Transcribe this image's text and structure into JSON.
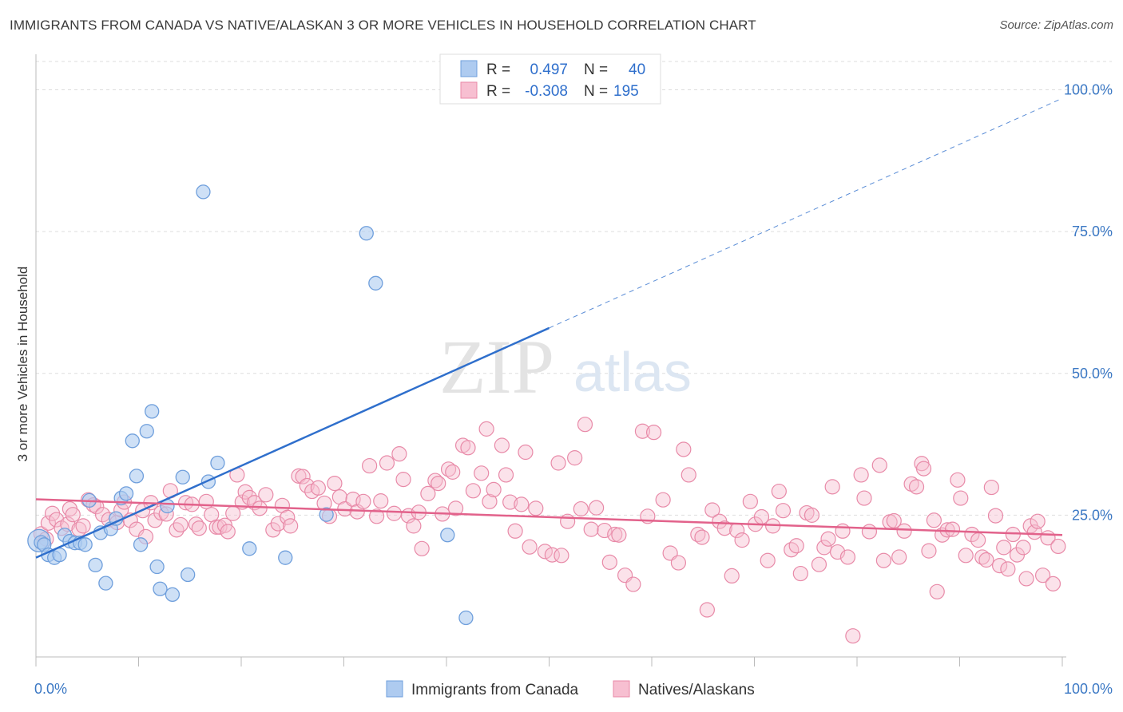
{
  "header": {
    "title": "IMMIGRANTS FROM CANADA VS NATIVE/ALASKAN 3 OR MORE VEHICLES IN HOUSEHOLD CORRELATION CHART",
    "source": "Source: ZipAtlas.com"
  },
  "watermark": {
    "zip": "ZIP",
    "atlas": "atlas"
  },
  "stats_legend": {
    "rows": [
      {
        "r_label": "R =",
        "r_value": "0.497",
        "n_label": "N =",
        "n_value": "40"
      },
      {
        "r_label": "R =",
        "r_value": "-0.308",
        "n_label": "N =",
        "n_value": "195"
      }
    ]
  },
  "colors": {
    "blue_fill": "#aecbf0",
    "blue_stroke": "#6f9fdc",
    "blue_line": "#2f6fcc",
    "pink_fill": "#f7bfd1",
    "pink_stroke": "#e88aa8",
    "pink_line": "#e2628b",
    "tick_text": "#3b78c4",
    "grid": "#dddddd"
  },
  "chart_data": {
    "type": "scatter",
    "title": "IMMIGRANTS FROM CANADA VS NATIVE/ALASKAN 3 OR MORE VEHICLES IN HOUSEHOLD CORRELATION CHART",
    "xlabel": "",
    "ylabel": "3 or more Vehicles in Household",
    "xlim": [
      0,
      100
    ],
    "ylim": [
      0,
      105
    ],
    "x_tick_labels": [
      "0.0%",
      "100.0%"
    ],
    "y_ticks": [
      25,
      50,
      75,
      100
    ],
    "y_tick_labels": [
      "25.0%",
      "50.0%",
      "75.0%",
      "100.0%"
    ],
    "grid": true,
    "legend_position": "bottom-center",
    "series": [
      {
        "name": "Immigrants from Canada",
        "color": "#aecbf0",
        "trend": {
          "x0": 0,
          "y0": 17.5,
          "x1": 50,
          "y1": 58,
          "x_dashed_end": 100,
          "y_dashed_end": 98.5
        },
        "points": [
          [
            0.3,
            20.5
          ],
          [
            0.5,
            20.2
          ],
          [
            0.8,
            19.8
          ],
          [
            1.2,
            18
          ],
          [
            1.8,
            17.5
          ],
          [
            2.3,
            18
          ],
          [
            2.8,
            21.5
          ],
          [
            3.3,
            20.4
          ],
          [
            3.8,
            20.1
          ],
          [
            4.3,
            20.1
          ],
          [
            4.8,
            19.8
          ],
          [
            5.2,
            27.6
          ],
          [
            5.8,
            16.2
          ],
          [
            6.3,
            21.9
          ],
          [
            6.8,
            13
          ],
          [
            7.3,
            22.6
          ],
          [
            7.8,
            24.4
          ],
          [
            8.3,
            28
          ],
          [
            8.8,
            28.8
          ],
          [
            9.4,
            38.1
          ],
          [
            9.8,
            31.9
          ],
          [
            10.2,
            19.8
          ],
          [
            10.8,
            39.8
          ],
          [
            11.3,
            43.3
          ],
          [
            11.8,
            15.9
          ],
          [
            12.1,
            12
          ],
          [
            12.8,
            26.6
          ],
          [
            13.3,
            11
          ],
          [
            14.3,
            31.7
          ],
          [
            14.8,
            14.5
          ],
          [
            16.3,
            82
          ],
          [
            16.8,
            30.9
          ],
          [
            17.7,
            34.2
          ],
          [
            20.8,
            19.1
          ],
          [
            24.3,
            17.5
          ],
          [
            28.3,
            25.1
          ],
          [
            32.2,
            74.7
          ],
          [
            33.1,
            65.9
          ],
          [
            40.1,
            21.5
          ],
          [
            41.9,
            6.9
          ]
        ]
      },
      {
        "name": "Natives/Alaskans",
        "color": "#f7bfd1",
        "trend": {
          "x0": 0,
          "y0": 27.8,
          "x1": 100,
          "y1": 21.5
        },
        "points": [
          [
            0.5,
            21.7
          ],
          [
            1,
            20.8
          ],
          [
            1.2,
            23.6
          ],
          [
            1.6,
            25.3
          ],
          [
            2,
            24.2
          ],
          [
            2.5,
            22.7
          ],
          [
            3.1,
            23.4
          ],
          [
            3.3,
            26.1
          ],
          [
            3.6,
            25.1
          ],
          [
            4.2,
            22.5
          ],
          [
            4.6,
            23.1
          ],
          [
            5.1,
            27.7
          ],
          [
            5.6,
            26.8
          ],
          [
            5.9,
            26.5
          ],
          [
            6.5,
            25.1
          ],
          [
            7.1,
            24.2
          ],
          [
            7.9,
            23.7
          ],
          [
            8.3,
            25.9
          ],
          [
            8.6,
            27.3
          ],
          [
            9.2,
            24.1
          ],
          [
            9.8,
            22.5
          ],
          [
            10.4,
            25.8
          ],
          [
            10.7,
            21.2
          ],
          [
            11.2,
            27.2
          ],
          [
            11.6,
            24.1
          ],
          [
            12.2,
            25.4
          ],
          [
            12.7,
            25.2
          ],
          [
            13.1,
            29.3
          ],
          [
            13.7,
            22.4
          ],
          [
            14.1,
            23.3
          ],
          [
            14.6,
            27.2
          ],
          [
            15.2,
            26.9
          ],
          [
            15.6,
            23.4
          ],
          [
            15.9,
            22.7
          ],
          [
            16.6,
            27.4
          ],
          [
            17.1,
            25.1
          ],
          [
            17.6,
            22.9
          ],
          [
            17.9,
            22.9
          ],
          [
            18.4,
            23.2
          ],
          [
            18.7,
            22.1
          ],
          [
            19.2,
            25.3
          ],
          [
            19.6,
            32.1
          ],
          [
            20.1,
            27.3
          ],
          [
            20.4,
            29.1
          ],
          [
            20.8,
            28.1
          ],
          [
            21.3,
            27.2
          ],
          [
            21.8,
            26.2
          ],
          [
            22.4,
            28.6
          ],
          [
            23.1,
            22.4
          ],
          [
            23.6,
            23.5
          ],
          [
            24,
            26.7
          ],
          [
            24.5,
            24.6
          ],
          [
            24.8,
            23.1
          ],
          [
            25.6,
            31.9
          ],
          [
            26,
            31.8
          ],
          [
            26.4,
            30.2
          ],
          [
            26.9,
            29.2
          ],
          [
            27.5,
            29.8
          ],
          [
            28.1,
            27.1
          ],
          [
            28.6,
            24.8
          ],
          [
            29.1,
            30.6
          ],
          [
            29.6,
            28.2
          ],
          [
            30.1,
            26.1
          ],
          [
            30.9,
            27.8
          ],
          [
            31.3,
            25.6
          ],
          [
            31.9,
            27.4
          ],
          [
            32.5,
            33.7
          ],
          [
            33.2,
            24.8
          ],
          [
            33.6,
            27.5
          ],
          [
            34.2,
            34.2
          ],
          [
            34.9,
            25.3
          ],
          [
            35.4,
            35.8
          ],
          [
            35.8,
            31.3
          ],
          [
            36.3,
            24.9
          ],
          [
            36.8,
            23.1
          ],
          [
            37.3,
            25.5
          ],
          [
            37.6,
            19.1
          ],
          [
            38.2,
            28.8
          ],
          [
            38.9,
            31.1
          ],
          [
            39.2,
            30.6
          ],
          [
            39.6,
            25.2
          ],
          [
            40.2,
            33.1
          ],
          [
            40.6,
            32.6
          ],
          [
            40.9,
            26.2
          ],
          [
            41.6,
            37.3
          ],
          [
            42.1,
            36.9
          ],
          [
            42.6,
            29.3
          ],
          [
            43.4,
            32.4
          ],
          [
            43.9,
            40.2
          ],
          [
            44.2,
            27.4
          ],
          [
            44.6,
            29.5
          ],
          [
            45.4,
            37.3
          ],
          [
            45.8,
            32.1
          ],
          [
            46.2,
            27.3
          ],
          [
            46.7,
            22.2
          ],
          [
            47.3,
            26.9
          ],
          [
            47.7,
            36.1
          ],
          [
            48.1,
            19.4
          ],
          [
            48.7,
            26.2
          ],
          [
            49.6,
            18.6
          ],
          [
            50.3,
            18
          ],
          [
            50.9,
            34.2
          ],
          [
            51.2,
            17.9
          ],
          [
            51.8,
            23.9
          ],
          [
            52.5,
            35.1
          ],
          [
            53.1,
            26.1
          ],
          [
            53.5,
            41
          ],
          [
            54.1,
            22.5
          ],
          [
            54.6,
            26.3
          ],
          [
            55.4,
            22.3
          ],
          [
            55.9,
            16.7
          ],
          [
            56.4,
            21.6
          ],
          [
            56.8,
            21.5
          ],
          [
            57.4,
            14.4
          ],
          [
            58.2,
            12.8
          ],
          [
            59.1,
            39.8
          ],
          [
            59.6,
            24.8
          ],
          [
            60.2,
            39.6
          ],
          [
            61.1,
            27.7
          ],
          [
            61.8,
            18.3
          ],
          [
            62.6,
            16.6
          ],
          [
            63.1,
            36.6
          ],
          [
            63.6,
            32.1
          ],
          [
            64.5,
            21.6
          ],
          [
            64.9,
            21.1
          ],
          [
            65.4,
            8.3
          ],
          [
            65.9,
            25.9
          ],
          [
            66.6,
            23.9
          ],
          [
            67.1,
            22.7
          ],
          [
            67.8,
            14.3
          ],
          [
            68.3,
            22.3
          ],
          [
            68.8,
            20.6
          ],
          [
            69.6,
            27.4
          ],
          [
            70.1,
            23.4
          ],
          [
            70.7,
            24.7
          ],
          [
            71.3,
            17
          ],
          [
            71.8,
            23.1
          ],
          [
            72.4,
            29.2
          ],
          [
            72.8,
            25.8
          ],
          [
            73.6,
            18.9
          ],
          [
            74.1,
            19.6
          ],
          [
            74.5,
            14.7
          ],
          [
            75.1,
            25.4
          ],
          [
            75.6,
            25
          ],
          [
            76.3,
            16.3
          ],
          [
            76.8,
            19.3
          ],
          [
            77.2,
            20.8
          ],
          [
            77.6,
            30
          ],
          [
            78.1,
            18.5
          ],
          [
            78.6,
            22.2
          ],
          [
            79.1,
            17.6
          ],
          [
            79.6,
            3.7
          ],
          [
            80.4,
            32.1
          ],
          [
            80.7,
            28
          ],
          [
            81.2,
            22.1
          ],
          [
            82.2,
            33.8
          ],
          [
            82.6,
            17
          ],
          [
            83.2,
            23.8
          ],
          [
            83.6,
            24
          ],
          [
            84.1,
            17.6
          ],
          [
            84.6,
            22.2
          ],
          [
            85.3,
            30.5
          ],
          [
            85.8,
            30
          ],
          [
            86.3,
            34.1
          ],
          [
            86.5,
            33.2
          ],
          [
            87,
            18.7
          ],
          [
            87.5,
            24.1
          ],
          [
            87.8,
            11.5
          ],
          [
            88.3,
            21.5
          ],
          [
            88.8,
            22.4
          ],
          [
            89.3,
            22.5
          ],
          [
            89.8,
            31.2
          ],
          [
            90.1,
            28
          ],
          [
            90.6,
            17.9
          ],
          [
            91.2,
            21.6
          ],
          [
            91.8,
            20.6
          ],
          [
            92.2,
            17.6
          ],
          [
            92.6,
            17.1
          ],
          [
            93.1,
            29.9
          ],
          [
            93.5,
            24.9
          ],
          [
            93.9,
            16.1
          ],
          [
            94.3,
            19.3
          ],
          [
            94.7,
            15.5
          ],
          [
            95.2,
            21.6
          ],
          [
            95.6,
            18
          ],
          [
            96.2,
            19.3
          ],
          [
            96.5,
            13.8
          ],
          [
            96.9,
            23.1
          ],
          [
            97.3,
            22
          ],
          [
            97.6,
            23.9
          ],
          [
            98.1,
            14.4
          ],
          [
            98.6,
            21
          ],
          [
            99.1,
            12.9
          ],
          [
            99.6,
            19.5
          ]
        ]
      }
    ]
  }
}
